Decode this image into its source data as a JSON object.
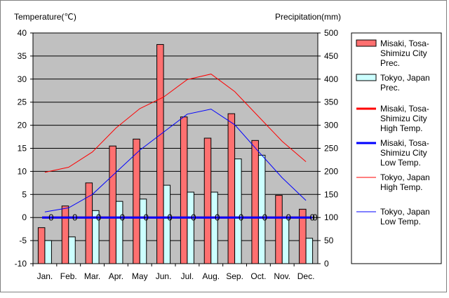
{
  "chart_data": {
    "type": "bar",
    "y_left_label": "Temperature(℃)",
    "y_right_label": "Precipitation(mm)",
    "ylim_left": [
      -10,
      40
    ],
    "ylim_right": [
      0,
      500
    ],
    "y_left_ticks": [
      "40",
      "35",
      "30",
      "25",
      "20",
      "15",
      "10",
      "5",
      "0",
      "-5",
      "-10"
    ],
    "y_right_ticks": [
      "500",
      "450",
      "400",
      "350",
      "300",
      "250",
      "200",
      "150",
      "100",
      "50",
      "0"
    ],
    "categories": [
      "Jan.",
      "Feb.",
      "Mar.",
      "Apr.",
      "May",
      "Jun.",
      "Jul.",
      "Aug.",
      "Sep.",
      "Oct.",
      "Nov.",
      "Dec."
    ],
    "bar_series": [
      {
        "name": "Misaki, Tosa-Shimizu City Prec.",
        "legend_lines": [
          "Misaki, Tosa-",
          "Shimizu City",
          "Prec."
        ],
        "color": "#ff7070",
        "values": [
          78,
          125,
          175,
          255,
          270,
          475,
          318,
          272,
          325,
          267,
          148,
          118
        ]
      },
      {
        "name": "Tokyo, Japan Prec.",
        "legend_lines": [
          "Tokyo, Japan",
          "Prec."
        ],
        "color": "#ccffff",
        "values": [
          50,
          58,
          115,
          135,
          140,
          170,
          155,
          155,
          227,
          235,
          100,
          55
        ]
      }
    ],
    "line_series": [
      {
        "name": "Misaki, Tosa-Shimizu City High Temp.",
        "legend_lines": [
          "Misaki, Tosa-",
          "Shimizu City",
          "High Temp."
        ],
        "color": "#ff0000",
        "width": 3,
        "values": [
          0,
          0,
          0,
          0,
          0,
          0,
          0,
          0,
          0,
          0,
          0,
          0
        ]
      },
      {
        "name": "Misaki, Tosa-Shimizu City Low Temp.",
        "legend_lines": [
          "Misaki, Tosa-",
          "Shimizu City",
          "Low Temp."
        ],
        "color": "#0000ff",
        "width": 3,
        "values": [
          0,
          0,
          0,
          0,
          0,
          0,
          0,
          0,
          0,
          0,
          0,
          0
        ]
      },
      {
        "name": "Tokyo, Japan High Temp.",
        "legend_lines": [
          "Tokyo, Japan",
          "High Temp."
        ],
        "color": "#ff0000",
        "width": 1,
        "values": [
          9.8,
          10.9,
          14.2,
          19.4,
          23.6,
          26.1,
          29.9,
          31.1,
          27.3,
          21.9,
          16.5,
          12.1
        ]
      },
      {
        "name": "Tokyo, Japan Low Temp.",
        "legend_lines": [
          "Tokyo, Japan",
          "Low Temp."
        ],
        "color": "#0000ff",
        "width": 1,
        "values": [
          1.2,
          2.1,
          5.0,
          9.8,
          14.6,
          18.5,
          22.4,
          23.5,
          20.1,
          14.3,
          8.6,
          3.7
        ]
      }
    ],
    "zero_labels": [
      "0",
      "0",
      "0",
      "0",
      "0",
      "0",
      "0",
      "0",
      "0",
      "0",
      "0",
      "0"
    ],
    "grid": true,
    "legend_position": "right"
  }
}
